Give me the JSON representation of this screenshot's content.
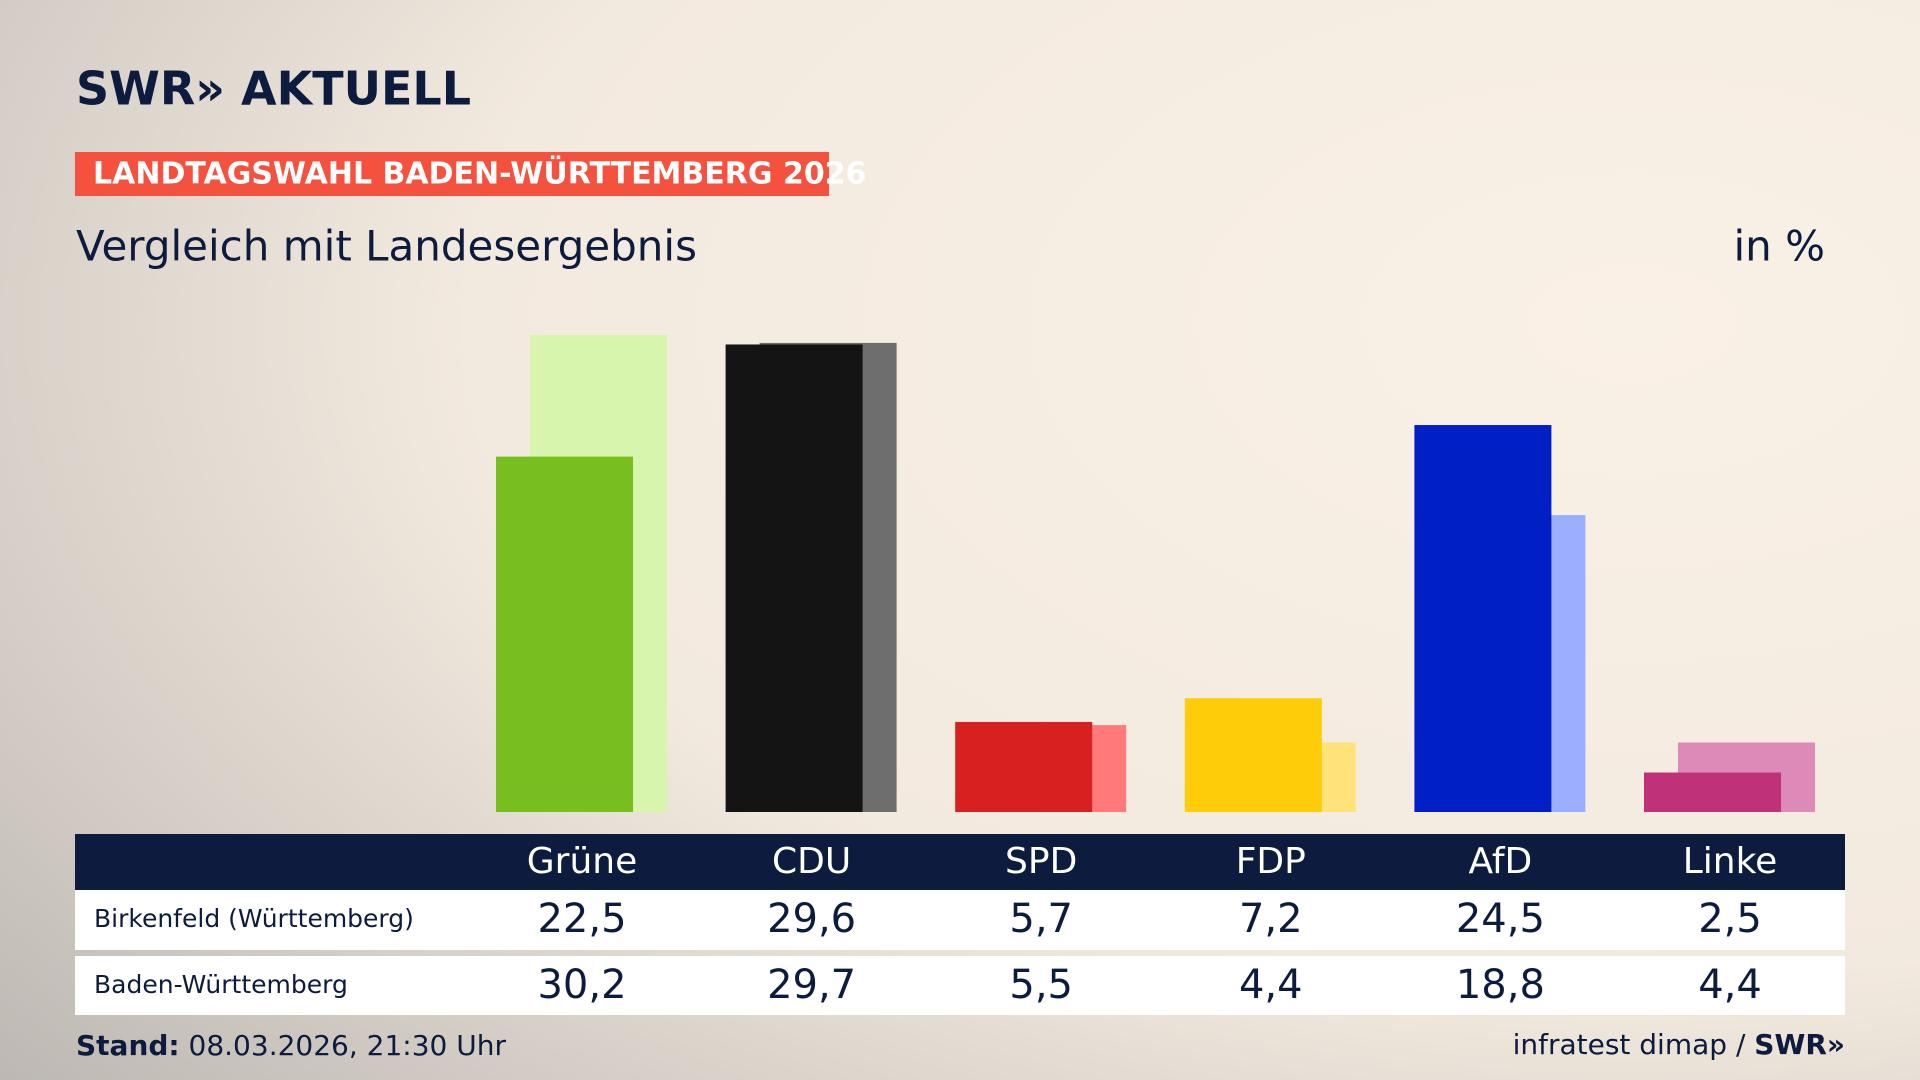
{
  "header": {
    "logo": "SWR» AKTUELL",
    "tag": "LANDTAGSWAHL BADEN-WÜRTTEMBERG 2026"
  },
  "chart_data": {
    "type": "bar",
    "title": "Vergleich mit Landesergebnis",
    "unit": "in %",
    "categories": [
      "Grüne",
      "CDU",
      "SPD",
      "FDP",
      "AfD",
      "Linke"
    ],
    "series": [
      {
        "name": "Birkenfeld (Württemberg)",
        "colors": [
          "#78be1e",
          "#141414",
          "#d7201f",
          "#ffcc0a",
          "#0020c6",
          "#bf3178"
        ],
        "values": [
          22.5,
          29.6,
          5.7,
          7.2,
          24.5,
          2.5
        ],
        "value_labels": [
          "22,5",
          "29,6",
          "5,7",
          "7,2",
          "24,5",
          "2,5"
        ]
      },
      {
        "name": "Baden-Württemberg",
        "colors": [
          "#d8f5ae",
          "#6e6e6e",
          "#ff7a78",
          "#ffe27a",
          "#9caeff",
          "#de8ab8"
        ],
        "values": [
          30.2,
          29.7,
          5.5,
          4.4,
          18.8,
          4.4
        ],
        "value_labels": [
          "30,2",
          "29,7",
          "5,5",
          "4,4",
          "18,8",
          "4,4"
        ]
      }
    ]
  },
  "footer": {
    "stand_label": "Stand:",
    "stand": "08.03.2026, 21:30 Uhr",
    "source": "infratest dimap /",
    "source_logo": "SWR»"
  }
}
